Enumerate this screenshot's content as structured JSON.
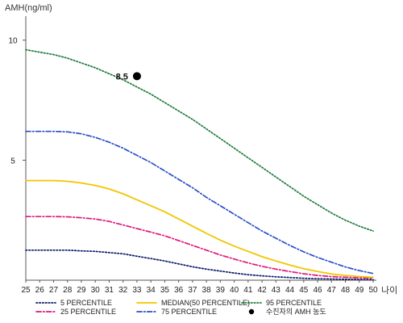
{
  "chart_data": {
    "type": "line",
    "ylabel": "AMH(ng/ml)",
    "xlabel": "나이",
    "x": [
      25,
      26,
      27,
      28,
      29,
      30,
      31,
      32,
      33,
      34,
      35,
      36,
      37,
      38,
      39,
      40,
      41,
      42,
      43,
      44,
      45,
      46,
      47,
      48,
      49,
      50
    ],
    "xlim": [
      25,
      50
    ],
    "ylim": [
      0,
      11
    ],
    "yticks": [
      5,
      10
    ],
    "grid": false,
    "legend_position": "bottom",
    "series": [
      {
        "name": "5 PERCENTILE",
        "color": "#0a1a6a",
        "style": "dotted",
        "values": [
          1.25,
          1.25,
          1.25,
          1.25,
          1.22,
          1.2,
          1.15,
          1.1,
          1.0,
          0.9,
          0.8,
          0.68,
          0.56,
          0.46,
          0.38,
          0.3,
          0.23,
          0.18,
          0.14,
          0.11,
          0.08,
          0.06,
          0.05,
          0.04,
          0.03,
          0.02
        ]
      },
      {
        "name": "25 PERCENTILE",
        "color": "#e0187a",
        "style": "dashdot",
        "values": [
          2.65,
          2.65,
          2.65,
          2.64,
          2.6,
          2.55,
          2.45,
          2.3,
          2.15,
          2.0,
          1.85,
          1.65,
          1.45,
          1.25,
          1.05,
          0.88,
          0.72,
          0.58,
          0.46,
          0.36,
          0.27,
          0.2,
          0.15,
          0.12,
          0.1,
          0.08
        ]
      },
      {
        "name": "MEDIAN(50 PERCENTILE)",
        "color": "#f2c500",
        "style": "solid",
        "values": [
          4.15,
          4.15,
          4.15,
          4.12,
          4.05,
          3.95,
          3.8,
          3.6,
          3.35,
          3.1,
          2.85,
          2.55,
          2.25,
          1.95,
          1.67,
          1.42,
          1.2,
          0.98,
          0.8,
          0.63,
          0.48,
          0.36,
          0.26,
          0.2,
          0.15,
          0.12
        ]
      },
      {
        "name": "75 PERCENTILE",
        "color": "#2a4fc8",
        "style": "dashdot",
        "values": [
          6.2,
          6.2,
          6.2,
          6.18,
          6.1,
          5.95,
          5.75,
          5.5,
          5.2,
          4.9,
          4.55,
          4.2,
          3.85,
          3.45,
          3.1,
          2.75,
          2.4,
          2.05,
          1.75,
          1.45,
          1.18,
          0.95,
          0.75,
          0.55,
          0.4,
          0.28
        ]
      },
      {
        "name": "95 PERCENTILE",
        "color": "#1e7a3c",
        "style": "dotted",
        "values": [
          9.6,
          9.5,
          9.4,
          9.25,
          9.05,
          8.85,
          8.6,
          8.35,
          8.05,
          7.75,
          7.4,
          7.05,
          6.7,
          6.3,
          5.9,
          5.5,
          5.1,
          4.7,
          4.3,
          3.9,
          3.5,
          3.15,
          2.8,
          2.5,
          2.25,
          2.05
        ]
      }
    ],
    "highlight": {
      "legend_label": "수진자의 AMH 농도",
      "x": 33,
      "y": 8.5,
      "label": "8.5",
      "color": "#000000"
    }
  }
}
